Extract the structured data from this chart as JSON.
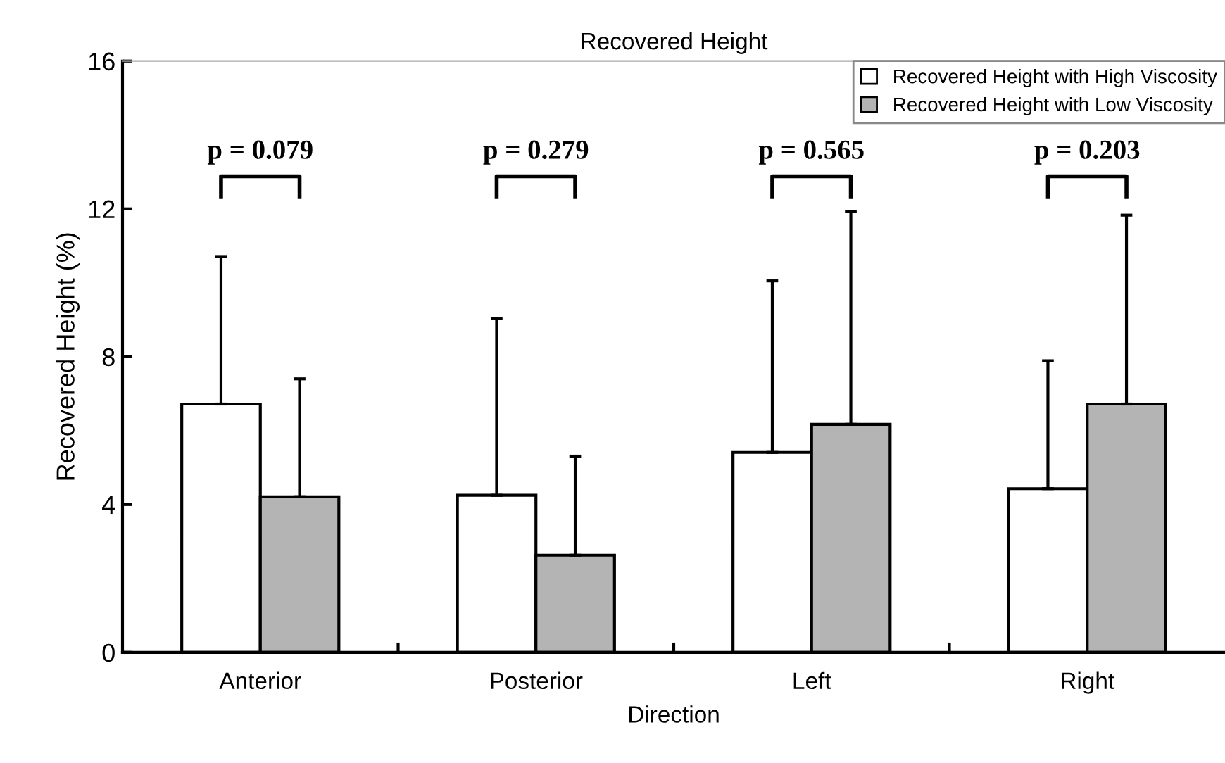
{
  "chart_data": {
    "type": "bar",
    "title": "Recovered Height",
    "xlabel": "Direction",
    "ylabel": "Recovered Height (%)",
    "categories": [
      "Anterior",
      "Posterior",
      "Left",
      "Right"
    ],
    "series": [
      {
        "name": "Recovered Height with High Viscosity",
        "color": "#ffffff",
        "values": [
          6.72,
          4.25,
          5.41,
          4.43
        ],
        "errors": [
          [
            6.72,
            10.71
          ],
          [
            4.25,
            9.03
          ],
          [
            5.41,
            10.05
          ],
          [
            4.43,
            7.89
          ]
        ]
      },
      {
        "name": "Recovered Height with Low Viscosity",
        "color": "#b4b4b4",
        "values": [
          4.21,
          2.63,
          6.17,
          6.72
        ],
        "errors": [
          [
            4.21,
            7.4
          ],
          [
            2.63,
            5.31
          ],
          [
            6.17,
            11.93
          ],
          [
            6.72,
            11.83
          ]
        ]
      }
    ],
    "annotations": [
      "p = 0.079",
      "p = 0.279",
      "p = 0.565",
      "p = 0.203"
    ],
    "ylim": [
      0,
      16
    ],
    "yticks": [
      0,
      4,
      8,
      12,
      16
    ],
    "grid": false,
    "legend": "top right"
  }
}
